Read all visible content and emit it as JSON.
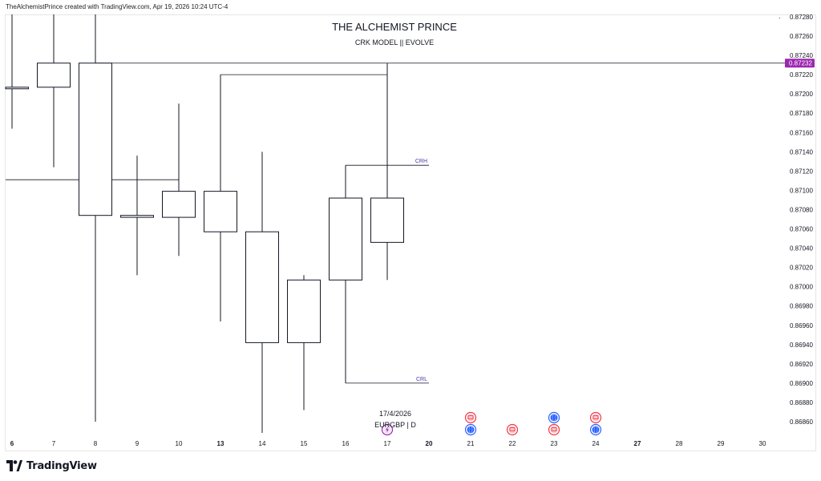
{
  "header": {
    "credit": "TheAlchemistPrince created with TradingView.com, Apr 19, 2026 10:24 UTC-4"
  },
  "footer": {
    "brand": "TradingView"
  },
  "chart_data": {
    "type": "candlestick",
    "title": "THE ALCHEMIST PRINCE",
    "subtitle": "CRK MODEL || EVOLVE",
    "symbol_label": "EURGBP | D",
    "date_label": "17/4/2026",
    "ylim": [
      0.86845,
      0.8729
    ],
    "y_ticks": [
      "0.87280",
      "0.87260",
      "0.87240",
      "0.87220",
      "0.87200",
      "0.87180",
      "0.87160",
      "0.87140",
      "0.87120",
      "0.87100",
      "0.87080",
      "0.87060",
      "0.87040",
      "0.87020",
      "0.87000",
      "0.86980",
      "0.86960",
      "0.86940",
      "0.86920",
      "0.86900",
      "0.86880",
      "0.86860"
    ],
    "x_ticks": [
      "6",
      "7",
      "8",
      "9",
      "10",
      "13",
      "14",
      "15",
      "16",
      "17",
      "20",
      "21",
      "22",
      "23",
      "24",
      "27",
      "28",
      "29",
      "30"
    ],
    "x_ticks_bold": [
      "6",
      "13",
      "20",
      "27"
    ],
    "last_price": "0.87232",
    "last_price_value": 0.87232,
    "candles": [
      {
        "x": "6",
        "open": 0.87207,
        "high": 0.8729,
        "low": 0.87164,
        "close": 0.87207
      },
      {
        "x": "7",
        "open": 0.87207,
        "high": 0.8729,
        "low": 0.87124,
        "close": 0.87232
      },
      {
        "x": "8",
        "open": 0.87232,
        "high": 0.8729,
        "low": 0.8686,
        "close": 0.87074
      },
      {
        "x": "9",
        "open": 0.87074,
        "high": 0.87136,
        "low": 0.87012,
        "close": 0.87072
      },
      {
        "x": "10",
        "open": 0.87072,
        "high": 0.8719,
        "low": 0.87032,
        "close": 0.87099
      },
      {
        "x": "13",
        "open": 0.87099,
        "high": 0.8722,
        "low": 0.86964,
        "close": 0.87057
      },
      {
        "x": "14",
        "open": 0.87057,
        "high": 0.8714,
        "low": 0.86847,
        "close": 0.86942
      },
      {
        "x": "15",
        "open": 0.86942,
        "high": 0.87012,
        "low": 0.86872,
        "close": 0.87007
      },
      {
        "x": "16",
        "open": 0.87007,
        "high": 0.87126,
        "low": 0.869,
        "close": 0.87092
      },
      {
        "x": "17",
        "open": 0.87092,
        "high": 0.87232,
        "low": 0.87007,
        "close": 0.87046
      }
    ],
    "lines": [
      {
        "label": "CRH",
        "value": 0.87126,
        "from": "16",
        "to": "17"
      },
      {
        "label": "CRL",
        "value": 0.869,
        "from": "16",
        "to": "17"
      },
      {
        "label": "",
        "value": 0.8722,
        "from": "13",
        "to": "16"
      },
      {
        "label": "",
        "value": 0.87111,
        "from": "6",
        "to": "9"
      },
      {
        "label": "",
        "value": 0.87232,
        "from": "8",
        "to": "right-edge"
      }
    ],
    "event_markers": [
      {
        "x": "17",
        "row": 1,
        "icon": "lightning-icon",
        "color": "#9c27b0"
      },
      {
        "x": "21",
        "row": 0,
        "icon": "flag-icon",
        "color": "#f23645"
      },
      {
        "x": "21",
        "row": 1,
        "icon": "globe-icon",
        "color": "#2962ff"
      },
      {
        "x": "22",
        "row": 1,
        "icon": "flag-icon",
        "color": "#f23645"
      },
      {
        "x": "23",
        "row": 0,
        "icon": "globe-icon",
        "color": "#2962ff"
      },
      {
        "x": "23",
        "row": 1,
        "icon": "flag-icon",
        "color": "#f23645"
      },
      {
        "x": "24",
        "row": 0,
        "icon": "flag-icon",
        "color": "#f23645"
      },
      {
        "x": "24",
        "row": 1,
        "icon": "globe-icon",
        "color": "#2962ff"
      }
    ],
    "colors": {
      "candle": "#131722",
      "last_price_badge": "#9c27b0",
      "label_text": "#4a3aa6"
    },
    "grid": false
  }
}
